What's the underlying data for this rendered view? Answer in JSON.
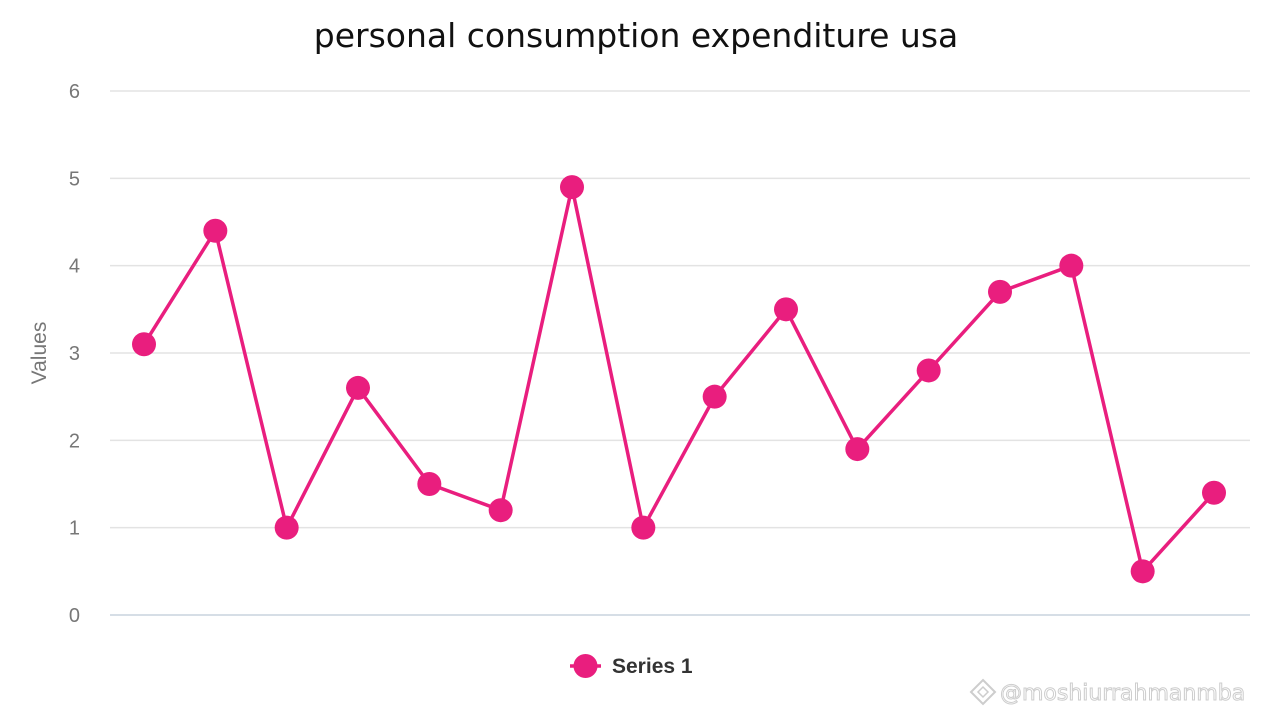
{
  "chart_data": {
    "type": "line",
    "title": "personal consumption expenditure usa",
    "xlabel": "",
    "ylabel": "Values",
    "ylim": [
      0,
      6
    ],
    "yticks": [
      "0",
      "1",
      "2",
      "3",
      "4",
      "5",
      "6"
    ],
    "grid": true,
    "legend_position": "bottom-center",
    "series": [
      {
        "name": "Series 1",
        "color": "#e91e7e",
        "values": [
          3.1,
          4.4,
          1.0,
          2.6,
          1.5,
          1.2,
          4.9,
          1.0,
          2.5,
          3.5,
          1.9,
          2.8,
          3.7,
          4.0,
          0.5,
          1.4
        ]
      }
    ]
  },
  "watermark": {
    "text": "@moshiurrahmanmba",
    "icon": "diamond-logo-icon"
  }
}
